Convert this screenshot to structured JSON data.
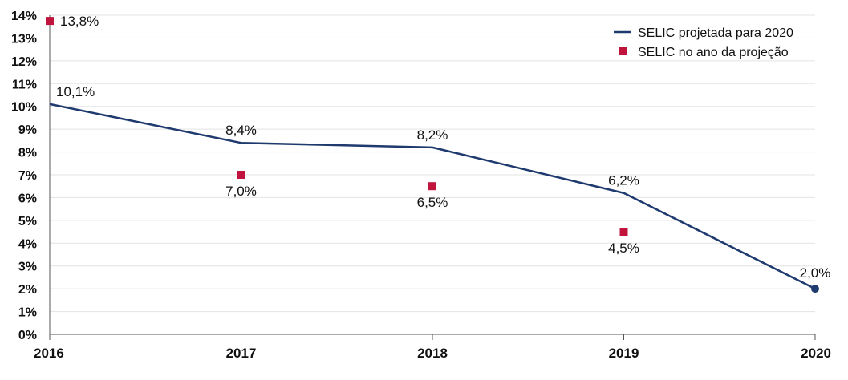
{
  "chart_data": {
    "type": "line",
    "categories": [
      "2016",
      "2017",
      "2018",
      "2019",
      "2020"
    ],
    "y_tick_labels": [
      "0%",
      "1%",
      "2%",
      "3%",
      "4%",
      "5%",
      "6%",
      "7%",
      "8%",
      "9%",
      "10%",
      "11%",
      "12%",
      "13%",
      "14%"
    ],
    "ylim": [
      0,
      14
    ],
    "grid": true,
    "legend_position": "top-right",
    "colors": {
      "line": "#1f3a6e",
      "marker": "#c0143c",
      "grid": "#e3e3e3",
      "axis": "#555555"
    },
    "series": [
      {
        "name": "SELIC projetada para 2020",
        "kind": "line",
        "values": [
          10.1,
          8.4,
          8.2,
          6.2,
          2.0
        ],
        "labels": [
          "10,1%",
          "8,4%",
          "8,2%",
          "6,2%",
          "2,0%"
        ]
      },
      {
        "name": "SELIC no ano da projeção",
        "kind": "marker",
        "values": [
          13.75,
          7.0,
          6.5,
          4.5,
          null
        ],
        "labels": [
          "13,8%",
          "7,0%",
          "6,5%",
          "4,5%",
          ""
        ]
      }
    ]
  }
}
